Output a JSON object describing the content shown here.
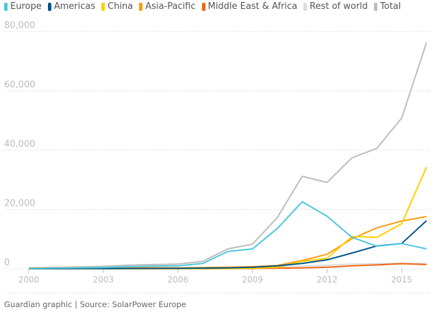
{
  "chart_data": {
    "type": "line",
    "title": "",
    "xlabel": "",
    "ylabel": "",
    "x": [
      2000,
      2001,
      2002,
      2003,
      2004,
      2005,
      2006,
      2007,
      2008,
      2009,
      2010,
      2011,
      2012,
      2013,
      2014,
      2015,
      2016
    ],
    "xticks": [
      2000,
      2003,
      2006,
      2009,
      2012,
      2015
    ],
    "xtick_labels": [
      "2000",
      "2003",
      "2006",
      "2009",
      "2012",
      "2015"
    ],
    "yticks": [
      0,
      20000,
      40000,
      60000,
      80000
    ],
    "ytick_labels": [
      "0",
      "20,000",
      "40,000",
      "60,000",
      "80,000"
    ],
    "ylim": [
      0,
      80000
    ],
    "grid": "horizontal dotted",
    "legend_placement": "top",
    "series": [
      {
        "name": "Europe",
        "color": "#4bc6df",
        "values": [
          100,
          200,
          300,
          400,
          700,
          900,
          1000,
          1800,
          5800,
          6700,
          13600,
          22600,
          17700,
          10600,
          7600,
          8500,
          6700
        ]
      },
      {
        "name": "Americas",
        "color": "#005689",
        "values": [
          20,
          30,
          50,
          70,
          90,
          110,
          150,
          200,
          300,
          500,
          1000,
          1800,
          3000,
          5300,
          7700,
          8500,
          16200
        ]
      },
      {
        "name": "China",
        "color": "#ffce00",
        "values": [
          20,
          20,
          20,
          20,
          20,
          20,
          20,
          20,
          40,
          200,
          500,
          2500,
          3500,
          10900,
          10600,
          15200,
          34300
        ]
      },
      {
        "name": "Asia-Pacific",
        "color": "#ff9b0b",
        "values": [
          200,
          250,
          300,
          350,
          300,
          350,
          300,
          400,
          500,
          700,
          1100,
          2800,
          4900,
          10100,
          13800,
          16100,
          17600
        ]
      },
      {
        "name": "Middle East & Africa",
        "color": "#f3660e",
        "values": [
          10,
          10,
          10,
          10,
          20,
          20,
          30,
          50,
          80,
          100,
          200,
          300,
          500,
          1000,
          1300,
          1700,
          1400
        ]
      },
      {
        "name": "Rest of world",
        "color": "#dcdcdc",
        "values": [
          50,
          60,
          70,
          80,
          100,
          120,
          150,
          200,
          300,
          400,
          600,
          900,
          1200,
          1600,
          1700,
          1900,
          1800
        ]
      },
      {
        "name": "Total",
        "color": "#bdbdbd",
        "values": [
          300,
          450,
          600,
          800,
          1200,
          1400,
          1600,
          2500,
          6700,
          8300,
          17300,
          31200,
          29100,
          37400,
          40600,
          50800,
          76300
        ]
      }
    ]
  },
  "footer": "Guardian graphic | Source: SolarPower Europe"
}
